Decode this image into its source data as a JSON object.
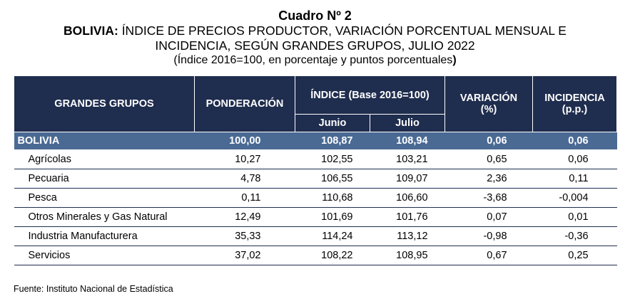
{
  "title": {
    "line1": "Cuadro Nº 2",
    "line2_bold": "BOLIVIA:",
    "line2_rest": " ÍNDICE DE PRECIOS PRODUCTOR, VARIACIÓN PORCENTUAL MENSUAL E",
    "line3": "INCIDENCIA, SEGÚN GRANDES GRUPOS, JULIO 2022",
    "line4_open": "(",
    "line4_text": "Índice 2016=100, en porcentaje y puntos porcentuales",
    "line4_close": ")"
  },
  "headers": {
    "grupos": "GRANDES GRUPOS",
    "ponderacion": "PONDERACIÓN",
    "indice": "ÍNDICE (Base 2016=100)",
    "junio": "Junio",
    "julio": "Julio",
    "variacion_1": "VARIACIÓN",
    "variacion_2": "(%)",
    "incidencia_1": "INCIDENCIA",
    "incidencia_2": "(p.p.)"
  },
  "total": {
    "name": "BOLIVIA",
    "ponderacion": "100,00",
    "junio": "108,87",
    "julio": "108,94",
    "variacion": "0,06",
    "incidencia": "0,06"
  },
  "rows": [
    {
      "name": "Agrícolas",
      "ponderacion": "10,27",
      "junio": "102,55",
      "julio": "103,21",
      "variacion": "0,65",
      "incidencia": "0,06"
    },
    {
      "name": "Pecuaria",
      "ponderacion": "4,78",
      "junio": "106,55",
      "julio": "109,07",
      "variacion": "2,36",
      "incidencia": "0,11"
    },
    {
      "name": "Pesca",
      "ponderacion": "0,11",
      "junio": "110,68",
      "julio": "106,60",
      "variacion": "-3,68",
      "incidencia": "-0,004"
    },
    {
      "name": "Otros Minerales y Gas Natural",
      "ponderacion": "12,49",
      "junio": "101,69",
      "julio": "101,76",
      "variacion": "0,07",
      "incidencia": "0,01"
    },
    {
      "name": "Industria Manufacturera",
      "ponderacion": "35,33",
      "junio": "114,24",
      "julio": "113,12",
      "variacion": "-0,98",
      "incidencia": "-0,36"
    },
    {
      "name": "Servicios",
      "ponderacion": "37,02",
      "junio": "108,22",
      "julio": "108,95",
      "variacion": "0,67",
      "incidencia": "0,25"
    }
  ],
  "source": "Fuente: Instituto Nacional de Estadística",
  "colors": {
    "header_bg": "#1f2d4e",
    "total_row_bg": "#4a6a94",
    "row_line": "#1f2d4e"
  }
}
